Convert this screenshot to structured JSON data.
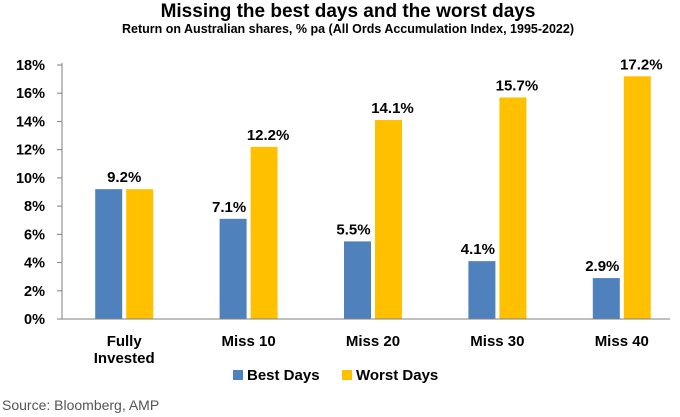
{
  "chart_data": {
    "type": "bar",
    "title": "Missing the best days and the worst days",
    "subtitle": "Return on Australian shares, % pa (All Ords Accumulation Index, 1995-2022)",
    "categories": [
      [
        "Fully",
        "Invested"
      ],
      [
        "Miss 10"
      ],
      [
        "Miss 20"
      ],
      [
        "Miss 30"
      ],
      [
        "Miss 40"
      ]
    ],
    "series": [
      {
        "name": "Best Days",
        "color": "#4f81bd",
        "values": [
          9.2,
          7.1,
          5.5,
          4.1,
          2.9
        ],
        "labels": [
          "9.2%",
          "7.1%",
          "5.5%",
          "4.1%",
          "2.9%"
        ]
      },
      {
        "name": "Worst Days",
        "color": "#ffc000",
        "values": [
          9.2,
          12.2,
          14.1,
          15.7,
          17.2
        ],
        "labels": [
          "",
          "12.2%",
          "14.1%",
          "15.7%",
          "17.2%"
        ]
      }
    ],
    "yticks": [
      0,
      2,
      4,
      6,
      8,
      10,
      12,
      14,
      16,
      18
    ],
    "ytick_labels": [
      "0%",
      "2%",
      "4%",
      "6%",
      "8%",
      "10%",
      "12%",
      "14%",
      "16%",
      "18%"
    ],
    "ylim": [
      0,
      18
    ],
    "grid": false,
    "legend": "bottom",
    "source": "Source: Bloomberg, AMP"
  }
}
